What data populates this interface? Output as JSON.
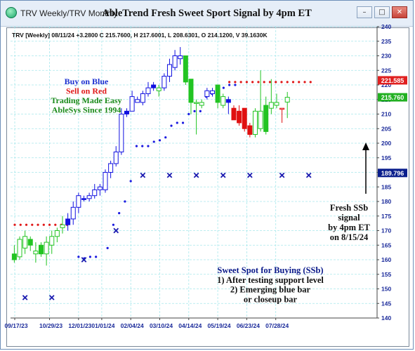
{
  "window": {
    "tab_title": "TRV Weekly/TRV Monthly",
    "chart_title": "AbleTrend Fresh Sweet Sport Signal by 4pm ET",
    "controls": [
      "minimize",
      "restore",
      "close"
    ]
  },
  "chart_data": {
    "type": "candlestick",
    "info_line": "TRV [Weekly] 08/11/24 +3.2800 C 215.7600, H 217.6001, L 208.6301, O 214.1200, V 39.1630K",
    "ylim": [
      140,
      240
    ],
    "y_ticks": [
      140,
      145,
      150,
      155,
      160,
      165,
      170,
      175,
      180,
      185,
      190,
      195,
      200,
      205,
      210,
      215,
      220,
      225,
      230,
      235,
      240
    ],
    "x_ticks": [
      {
        "label": "09/17/23",
        "index": 0
      },
      {
        "label": "10/29/23",
        "index": 6
      },
      {
        "label": "12/01/23",
        "index": 11
      },
      {
        "label": "01/01/24",
        "index": 15
      },
      {
        "label": "02/04/24",
        "index": 20
      },
      {
        "label": "03/10/24",
        "index": 25
      },
      {
        "label": "04/14/24",
        "index": 30
      },
      {
        "label": "05/19/24",
        "index": 35
      },
      {
        "label": "06/23/24",
        "index": 40
      },
      {
        "label": "07/28/24",
        "index": 45
      }
    ],
    "price_labels": [
      {
        "value": 221.585,
        "text": "221.585",
        "color": "#e02020"
      },
      {
        "value": 215.76,
        "text": "215.760",
        "color": "#22b022"
      },
      {
        "value": 189.796,
        "text": "189.796",
        "color": "#0a1e8c"
      }
    ],
    "candles": [
      {
        "o": 162,
        "h": 165,
        "l": 159,
        "c": 160,
        "color": "green",
        "filled": true
      },
      {
        "o": 161,
        "h": 168,
        "l": 160,
        "c": 167,
        "color": "green",
        "filled": false
      },
      {
        "o": 164,
        "h": 170,
        "l": 162,
        "c": 168,
        "color": "green",
        "filled": false
      },
      {
        "o": 167,
        "h": 168,
        "l": 163,
        "c": 165,
        "color": "green",
        "filled": true
      },
      {
        "o": 163,
        "h": 166,
        "l": 159,
        "c": 162,
        "color": "green",
        "filled": false
      },
      {
        "o": 162,
        "h": 166,
        "l": 161,
        "c": 165,
        "color": "green",
        "filled": true
      },
      {
        "o": 162,
        "h": 168,
        "l": 158,
        "c": 166,
        "color": "green",
        "filled": false
      },
      {
        "o": 165,
        "h": 170,
        "l": 162,
        "c": 168,
        "color": "green",
        "filled": false
      },
      {
        "o": 168,
        "h": 171,
        "l": 166,
        "c": 170,
        "color": "green",
        "filled": false
      },
      {
        "o": 171,
        "h": 175,
        "l": 169,
        "c": 172,
        "color": "green",
        "filled": false
      },
      {
        "o": 172,
        "h": 176,
        "l": 170,
        "c": 174,
        "color": "blue",
        "filled": true
      },
      {
        "o": 174,
        "h": 180,
        "l": 172,
        "c": 178,
        "color": "blue",
        "filled": false
      },
      {
        "o": 178,
        "h": 183,
        "l": 176,
        "c": 182,
        "color": "blue",
        "filled": false
      },
      {
        "o": 181,
        "h": 182,
        "l": 180,
        "c": 181,
        "color": "blue",
        "filled": true
      },
      {
        "o": 181,
        "h": 183,
        "l": 180,
        "c": 182,
        "color": "blue",
        "filled": false
      },
      {
        "o": 182,
        "h": 186,
        "l": 181,
        "c": 184,
        "color": "blue",
        "filled": false
      },
      {
        "o": 184,
        "h": 186,
        "l": 182,
        "c": 185,
        "color": "blue",
        "filled": false
      },
      {
        "o": 184,
        "h": 191,
        "l": 183,
        "c": 190,
        "color": "blue",
        "filled": false
      },
      {
        "o": 190,
        "h": 194,
        "l": 188,
        "c": 193,
        "color": "blue",
        "filled": false
      },
      {
        "o": 193,
        "h": 199,
        "l": 192,
        "c": 197,
        "color": "blue",
        "filled": false
      },
      {
        "o": 197,
        "h": 212,
        "l": 196,
        "c": 210,
        "color": "blue",
        "filled": false
      },
      {
        "o": 210,
        "h": 212,
        "l": 209,
        "c": 211,
        "color": "blue",
        "filled": true
      },
      {
        "o": 211,
        "h": 218,
        "l": 211,
        "c": 216,
        "color": "blue",
        "filled": false
      },
      {
        "o": 215,
        "h": 216,
        "l": 214,
        "c": 214,
        "color": "blue",
        "filled": false
      },
      {
        "o": 214,
        "h": 218,
        "l": 213,
        "c": 217,
        "color": "blue",
        "filled": false
      },
      {
        "o": 217,
        "h": 221,
        "l": 216,
        "c": 219,
        "color": "blue",
        "filled": false
      },
      {
        "o": 219,
        "h": 221,
        "l": 218,
        "c": 220,
        "color": "blue",
        "filled": true
      },
      {
        "o": 218,
        "h": 220,
        "l": 216,
        "c": 219,
        "color": "green",
        "filled": false
      },
      {
        "o": 219,
        "h": 224,
        "l": 218,
        "c": 223,
        "color": "blue",
        "filled": false
      },
      {
        "o": 223,
        "h": 229,
        "l": 221,
        "c": 227,
        "color": "blue",
        "filled": false
      },
      {
        "o": 226,
        "h": 232,
        "l": 225,
        "c": 230,
        "color": "blue",
        "filled": false
      },
      {
        "o": 230,
        "h": 233,
        "l": 227,
        "c": 229,
        "color": "blue",
        "filled": false
      },
      {
        "o": 230,
        "h": 230,
        "l": 220,
        "c": 221,
        "color": "green",
        "filled": true
      },
      {
        "o": 222,
        "h": 222,
        "l": 210,
        "c": 214,
        "color": "green",
        "filled": true
      },
      {
        "o": 214,
        "h": 215,
        "l": 203,
        "c": 214,
        "color": "green",
        "filled": false
      },
      {
        "o": 213,
        "h": 215,
        "l": 212,
        "c": 214,
        "color": "green",
        "filled": false
      },
      {
        "o": 216,
        "h": 219,
        "l": 215,
        "c": 218,
        "color": "blue",
        "filled": false
      },
      {
        "o": 217,
        "h": 219,
        "l": 216,
        "c": 218,
        "color": "blue",
        "filled": false
      },
      {
        "o": 220,
        "h": 220,
        "l": 212,
        "c": 214,
        "color": "green",
        "filled": true
      },
      {
        "o": 216,
        "h": 217,
        "l": 212,
        "c": 213,
        "color": "green",
        "filled": false
      },
      {
        "o": 215,
        "h": 216,
        "l": 210,
        "c": 214,
        "color": "blue",
        "filled": true
      },
      {
        "o": 212,
        "h": 213,
        "l": 208,
        "c": 208,
        "color": "red",
        "filled": true
      },
      {
        "o": 211,
        "h": 213,
        "l": 206,
        "c": 207,
        "color": "red",
        "filled": true
      },
      {
        "o": 212,
        "h": 212,
        "l": 204,
        "c": 205,
        "color": "red",
        "filled": true
      },
      {
        "o": 206,
        "h": 207,
        "l": 202,
        "c": 203,
        "color": "red",
        "filled": true
      },
      {
        "o": 203,
        "h": 212,
        "l": 202,
        "c": 211,
        "color": "green",
        "filled": false
      },
      {
        "o": 205,
        "h": 225,
        "l": 204,
        "c": 211,
        "color": "green",
        "filled": false
      },
      {
        "o": 204,
        "h": 216,
        "l": 203,
        "c": 213,
        "color": "green",
        "filled": true
      },
      {
        "o": 212,
        "h": 222,
        "l": 210,
        "c": 214,
        "color": "green",
        "filled": false
      },
      {
        "o": 213,
        "h": 217,
        "l": 212,
        "c": 214,
        "color": "green",
        "filled": false
      },
      {
        "o": 212,
        "h": 212,
        "l": 207,
        "c": 212,
        "color": "red",
        "filled": false
      },
      {
        "o": 214.12,
        "h": 217.6,
        "l": 208.63,
        "c": 215.76,
        "color": "green",
        "filled": false
      }
    ],
    "red_dots": [
      {
        "y": 172,
        "from": 0,
        "to": 9
      },
      {
        "y": 221,
        "from": 37,
        "to": 51
      }
    ],
    "blue_dots": [
      {
        "i": 11,
        "y": 161
      },
      {
        "i": 12,
        "y": 160.5
      },
      {
        "i": 13,
        "y": 161
      },
      {
        "i": 14,
        "y": 161
      },
      {
        "i": 16,
        "y": 164
      },
      {
        "i": 17,
        "y": 172
      },
      {
        "i": 18,
        "y": 176
      },
      {
        "i": 19,
        "y": 180
      },
      {
        "i": 20,
        "y": 187
      },
      {
        "i": 21,
        "y": 199
      },
      {
        "i": 22,
        "y": 199
      },
      {
        "i": 23,
        "y": 199
      },
      {
        "i": 24,
        "y": 200.5
      },
      {
        "i": 25,
        "y": 201
      },
      {
        "i": 26,
        "y": 202
      },
      {
        "i": 27,
        "y": 206
      },
      {
        "i": 28,
        "y": 207
      },
      {
        "i": 29,
        "y": 207
      },
      {
        "i": 30,
        "y": 210
      },
      {
        "i": 31,
        "y": 211
      },
      {
        "i": 32,
        "y": 211
      },
      {
        "i": 33,
        "y": 216
      },
      {
        "i": 34,
        "y": 217
      },
      {
        "i": 35,
        "y": 218
      },
      {
        "i": 36,
        "y": 219
      },
      {
        "i": 37,
        "y": 220
      },
      {
        "i": 38,
        "y": 220
      }
    ],
    "x_markers": [
      {
        "i": 2,
        "y": 147
      },
      {
        "i": 7,
        "y": 147
      },
      {
        "i": 13,
        "y": 160
      },
      {
        "i": 19,
        "y": 170
      },
      {
        "i": 24,
        "y": 189
      },
      {
        "i": 29,
        "y": 189
      },
      {
        "i": 34,
        "y": 189
      },
      {
        "i": 39,
        "y": 189
      },
      {
        "i": 44,
        "y": 189
      },
      {
        "i": 50,
        "y": 189
      },
      {
        "i": 55,
        "y": 189
      }
    ],
    "legend": [
      {
        "text": "Buy on Blue",
        "color": "#1a2fd0"
      },
      {
        "text": "Sell on Red",
        "color": "#e01818"
      },
      {
        "text": "Trading Made Easy",
        "color": "#1a8a1a"
      },
      {
        "text": "AbleSys Since 1994",
        "color": "#1a8a1a"
      }
    ],
    "annotation_signal": [
      "Fresh SSb",
      "signal",
      "by 4pm ET",
      "on 8/15/24"
    ],
    "annotation_sweet": [
      {
        "text": "Sweet Spot for Buying (SSb)",
        "color": "#0a1a8a"
      },
      {
        "text": "1) After testing support level",
        "color": "#111111"
      },
      {
        "text": "2) Emerging blue bar",
        "color": "#111111"
      },
      {
        "text": "or closeup bar",
        "color": "#111111"
      }
    ]
  }
}
